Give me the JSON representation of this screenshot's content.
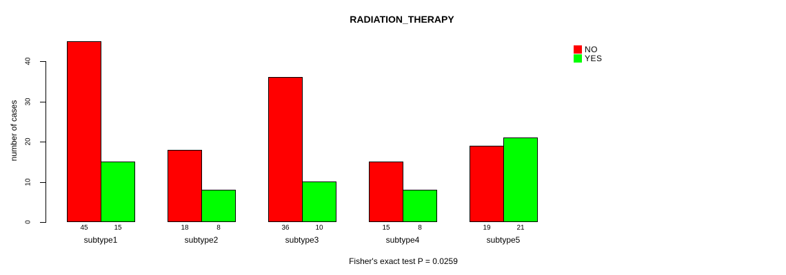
{
  "figure": {
    "title": "RADIATION_THERAPY",
    "caption": "Fisher's exact test P = 0.0259"
  },
  "chart_data": {
    "type": "bar",
    "title": "RADIATION_THERAPY",
    "categories": [
      "subtype1",
      "subtype2",
      "subtype3",
      "subtype4",
      "subtype5"
    ],
    "series": [
      {
        "name": "NO",
        "color": "#FF0000",
        "values": [
          45,
          18,
          36,
          15,
          19
        ]
      },
      {
        "name": "YES",
        "color": "#00FF00",
        "values": [
          15,
          8,
          10,
          8,
          21
        ]
      }
    ],
    "xlabel": "",
    "ylabel": "number of cases",
    "yticks": [
      0,
      10,
      20,
      30,
      40
    ],
    "ylim": [
      0,
      45
    ],
    "grid": false,
    "legend_position": "top-right",
    "bar_value_labels": true,
    "annotation": "Fisher's exact test P = 0.0259"
  }
}
